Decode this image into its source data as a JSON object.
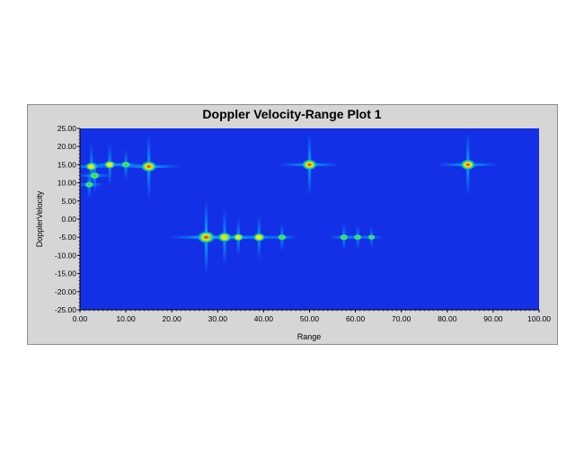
{
  "chart_data": {
    "type": "heatmap",
    "title": "Doppler Velocity-Range Plot 1",
    "xlabel": "Range",
    "ylabel": "DopplerVelocity",
    "xlim": [
      0,
      100
    ],
    "ylim": [
      -25,
      25
    ],
    "x_ticks": [
      "0.00",
      "10.00",
      "20.00",
      "30.00",
      "40.00",
      "50.00",
      "60.00",
      "70.00",
      "80.00",
      "90.00",
      "100.00"
    ],
    "y_ticks": [
      "25.00",
      "20.00",
      "15.00",
      "10.00",
      "5.00",
      "0.00",
      "-5.00",
      "-10.00",
      "-15.00",
      "-20.00",
      "-25.00"
    ],
    "background_color": "#1430e6",
    "colormap": [
      "#1430e6",
      "#00b4ff",
      "#1fe06a",
      "#f5f000",
      "#ff8800",
      "#e00000"
    ],
    "grid": false,
    "points": [
      {
        "range": 2.5,
        "velocity": 14.5,
        "intensity": 0.55
      },
      {
        "range": 3.2,
        "velocity": 12.0,
        "intensity": 0.4
      },
      {
        "range": 2.0,
        "velocity": 9.5,
        "intensity": 0.3
      },
      {
        "range": 6.5,
        "velocity": 15.0,
        "intensity": 0.5
      },
      {
        "range": 10.0,
        "velocity": 15.0,
        "intensity": 0.35
      },
      {
        "range": 15.0,
        "velocity": 14.5,
        "intensity": 0.85
      },
      {
        "range": 50.0,
        "velocity": 15.0,
        "intensity": 0.8
      },
      {
        "range": 84.5,
        "velocity": 15.0,
        "intensity": 0.8
      },
      {
        "range": 27.5,
        "velocity": -5.0,
        "intensity": 1.0
      },
      {
        "range": 31.5,
        "velocity": -5.0,
        "intensity": 0.7
      },
      {
        "range": 34.5,
        "velocity": -5.0,
        "intensity": 0.45
      },
      {
        "range": 39.0,
        "velocity": -5.0,
        "intensity": 0.55
      },
      {
        "range": 44.0,
        "velocity": -5.0,
        "intensity": 0.3
      },
      {
        "range": 57.5,
        "velocity": -5.0,
        "intensity": 0.3
      },
      {
        "range": 60.5,
        "velocity": -5.0,
        "intensity": 0.25
      },
      {
        "range": 63.5,
        "velocity": -5.0,
        "intensity": 0.2
      }
    ]
  }
}
